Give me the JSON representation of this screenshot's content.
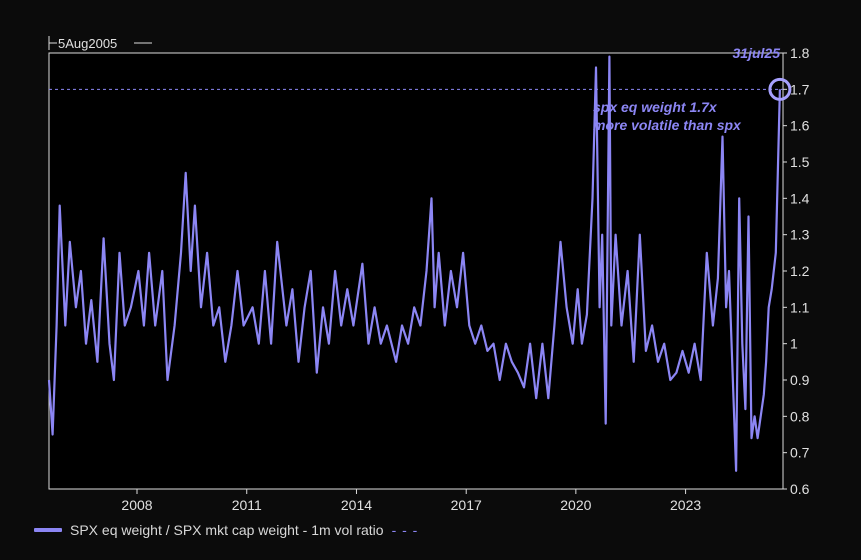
{
  "chart_data": {
    "type": "line",
    "start_label": "5Aug2005",
    "ylim": [
      0.6,
      1.8
    ],
    "yticks": [
      0.6,
      0.7,
      0.8,
      0.9,
      1,
      1.1,
      1.2,
      1.3,
      1.4,
      1.5,
      1.6,
      1.7,
      1.8
    ],
    "xlim": [
      "2005-08-05",
      "2025-08-31"
    ],
    "xticks": [
      {
        "label": "2008",
        "date": "2008-01-01"
      },
      {
        "label": "2011",
        "date": "2011-01-01"
      },
      {
        "label": "2014",
        "date": "2014-01-01"
      },
      {
        "label": "2017",
        "date": "2017-01-01"
      },
      {
        "label": "2020",
        "date": "2020-01-01"
      },
      {
        "label": "2023",
        "date": "2023-01-01"
      }
    ],
    "reference_line": {
      "y": 1.7
    },
    "latest_point": {
      "label": "31jul25",
      "date": "2025-07-31",
      "y": 1.7
    },
    "annotation": [
      "spx eq weight 1.7x",
      "more volatile than spx"
    ],
    "grid": false,
    "legend_position": "bottom-left",
    "series": [
      {
        "name": "SPX eq weight / SPX mkt cap weight - 1m vol ratio",
        "color": "#8c86f4",
        "points": [
          [
            "2005-08-05",
            0.9
          ],
          [
            "2005-09-10",
            0.75
          ],
          [
            "2005-10-20",
            1.05
          ],
          [
            "2005-11-20",
            1.38
          ],
          [
            "2006-01-15",
            1.05
          ],
          [
            "2006-03-01",
            1.28
          ],
          [
            "2006-05-01",
            1.1
          ],
          [
            "2006-06-20",
            1.2
          ],
          [
            "2006-08-10",
            1.0
          ],
          [
            "2006-10-01",
            1.12
          ],
          [
            "2006-12-01",
            0.95
          ],
          [
            "2007-02-01",
            1.29
          ],
          [
            "2007-04-01",
            1.0
          ],
          [
            "2007-05-15",
            0.9
          ],
          [
            "2007-07-10",
            1.25
          ],
          [
            "2007-09-01",
            1.05
          ],
          [
            "2007-11-01",
            1.1
          ],
          [
            "2008-01-15",
            1.2
          ],
          [
            "2008-03-10",
            1.05
          ],
          [
            "2008-05-01",
            1.25
          ],
          [
            "2008-07-01",
            1.05
          ],
          [
            "2008-09-10",
            1.2
          ],
          [
            "2008-11-01",
            0.9
          ],
          [
            "2009-01-10",
            1.05
          ],
          [
            "2009-03-15",
            1.25
          ],
          [
            "2009-05-01",
            1.47
          ],
          [
            "2009-06-20",
            1.2
          ],
          [
            "2009-08-01",
            1.38
          ],
          [
            "2009-10-01",
            1.1
          ],
          [
            "2009-12-01",
            1.25
          ],
          [
            "2010-02-01",
            1.05
          ],
          [
            "2010-04-01",
            1.1
          ],
          [
            "2010-06-01",
            0.95
          ],
          [
            "2010-08-01",
            1.05
          ],
          [
            "2010-10-01",
            1.2
          ],
          [
            "2010-12-01",
            1.05
          ],
          [
            "2011-03-01",
            1.1
          ],
          [
            "2011-05-01",
            1.0
          ],
          [
            "2011-07-01",
            1.2
          ],
          [
            "2011-09-01",
            1.0
          ],
          [
            "2011-11-01",
            1.28
          ],
          [
            "2012-02-01",
            1.05
          ],
          [
            "2012-04-01",
            1.15
          ],
          [
            "2012-06-01",
            0.95
          ],
          [
            "2012-08-01",
            1.1
          ],
          [
            "2012-10-01",
            1.2
          ],
          [
            "2012-12-01",
            0.92
          ],
          [
            "2013-02-01",
            1.1
          ],
          [
            "2013-04-01",
            1.0
          ],
          [
            "2013-06-01",
            1.2
          ],
          [
            "2013-08-01",
            1.05
          ],
          [
            "2013-10-01",
            1.15
          ],
          [
            "2013-12-01",
            1.05
          ],
          [
            "2014-03-01",
            1.22
          ],
          [
            "2014-05-01",
            1.0
          ],
          [
            "2014-07-01",
            1.1
          ],
          [
            "2014-09-01",
            1.0
          ],
          [
            "2014-11-01",
            1.05
          ],
          [
            "2015-02-01",
            0.95
          ],
          [
            "2015-04-01",
            1.05
          ],
          [
            "2015-06-01",
            1.0
          ],
          [
            "2015-08-01",
            1.1
          ],
          [
            "2015-10-01",
            1.05
          ],
          [
            "2015-12-01",
            1.2
          ],
          [
            "2016-01-20",
            1.4
          ],
          [
            "2016-02-20",
            1.1
          ],
          [
            "2016-04-01",
            1.25
          ],
          [
            "2016-06-01",
            1.05
          ],
          [
            "2016-08-01",
            1.2
          ],
          [
            "2016-10-01",
            1.1
          ],
          [
            "2016-12-01",
            1.25
          ],
          [
            "2017-02-01",
            1.05
          ],
          [
            "2017-04-01",
            1.0
          ],
          [
            "2017-06-01",
            1.05
          ],
          [
            "2017-08-01",
            0.98
          ],
          [
            "2017-10-01",
            1.0
          ],
          [
            "2017-12-01",
            0.9
          ],
          [
            "2018-02-01",
            1.0
          ],
          [
            "2018-04-01",
            0.95
          ],
          [
            "2018-06-01",
            0.92
          ],
          [
            "2018-08-01",
            0.88
          ],
          [
            "2018-10-01",
            1.0
          ],
          [
            "2018-12-01",
            0.85
          ],
          [
            "2019-02-01",
            1.0
          ],
          [
            "2019-04-01",
            0.85
          ],
          [
            "2019-06-01",
            1.05
          ],
          [
            "2019-08-01",
            1.28
          ],
          [
            "2019-10-01",
            1.1
          ],
          [
            "2019-12-01",
            1.0
          ],
          [
            "2020-01-20",
            1.15
          ],
          [
            "2020-03-01",
            1.0
          ],
          [
            "2020-04-20",
            1.08
          ],
          [
            "2020-06-15",
            1.4
          ],
          [
            "2020-07-20",
            1.76
          ],
          [
            "2020-08-25",
            1.1
          ],
          [
            "2020-09-20",
            1.3
          ],
          [
            "2020-10-25",
            0.78
          ],
          [
            "2020-12-01",
            1.79
          ],
          [
            "2020-12-20",
            1.05
          ],
          [
            "2021-02-01",
            1.3
          ],
          [
            "2021-04-01",
            1.05
          ],
          [
            "2021-06-01",
            1.2
          ],
          [
            "2021-08-01",
            0.95
          ],
          [
            "2021-10-01",
            1.3
          ],
          [
            "2021-12-01",
            0.98
          ],
          [
            "2022-02-01",
            1.05
          ],
          [
            "2022-04-01",
            0.95
          ],
          [
            "2022-06-01",
            1.0
          ],
          [
            "2022-08-01",
            0.9
          ],
          [
            "2022-10-01",
            0.92
          ],
          [
            "2022-12-01",
            0.98
          ],
          [
            "2023-02-01",
            0.92
          ],
          [
            "2023-04-01",
            1.0
          ],
          [
            "2023-06-01",
            0.9
          ],
          [
            "2023-08-01",
            1.25
          ],
          [
            "2023-10-01",
            1.05
          ],
          [
            "2023-11-20",
            1.18
          ],
          [
            "2024-01-05",
            1.57
          ],
          [
            "2024-02-10",
            1.1
          ],
          [
            "2024-03-10",
            1.2
          ],
          [
            "2024-04-20",
            0.88
          ],
          [
            "2024-05-20",
            0.65
          ],
          [
            "2024-06-20",
            1.4
          ],
          [
            "2024-07-20",
            1.0
          ],
          [
            "2024-08-20",
            0.82
          ],
          [
            "2024-09-20",
            1.35
          ],
          [
            "2024-10-20",
            0.74
          ],
          [
            "2024-11-20",
            0.8
          ],
          [
            "2024-12-20",
            0.74
          ],
          [
            "2025-01-20",
            0.8
          ],
          [
            "2025-02-20",
            0.86
          ],
          [
            "2025-03-15",
            0.95
          ],
          [
            "2025-04-10",
            1.1
          ],
          [
            "2025-05-10",
            1.15
          ],
          [
            "2025-06-20",
            1.25
          ],
          [
            "2025-07-31",
            1.7
          ]
        ]
      }
    ]
  }
}
